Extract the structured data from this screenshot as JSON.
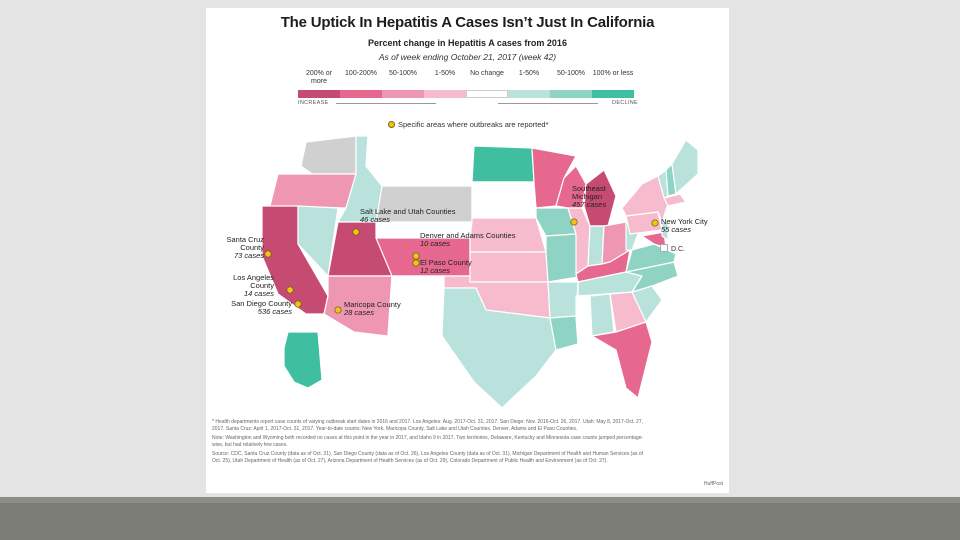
{
  "title": "The Uptick In Hepatitis A Cases Isn’t Just In California",
  "subtitle": "Percent change in Hepatitis A cases from 2016",
  "as_of": "As of week ending October 21, 2017 (week 42)",
  "legend": {
    "items": [
      {
        "label": "200% or more",
        "color": "#c64b72"
      },
      {
        "label": "100-200%",
        "color": "#e6688e"
      },
      {
        "label": "50-100%",
        "color": "#ef97b2"
      },
      {
        "label": "1-50%",
        "color": "#f6bccd"
      },
      {
        "label": "No change",
        "color": "#ffffff"
      },
      {
        "label": "1-50%",
        "color": "#b8e2db"
      },
      {
        "label": "50-100%",
        "color": "#8fd3c4"
      },
      {
        "label": "100% or less",
        "color": "#3fbf9f"
      }
    ],
    "increase_label": "INCREASE",
    "decline_label": "DECLINE"
  },
  "outbreak_key": "Specific areas where outbreaks are reported*",
  "annotations": {
    "santa_cruz": {
      "name": "Santa Cruz County",
      "cases": "73 cases"
    },
    "los_angeles": {
      "name": "Los Angeles County",
      "cases": "14 cases"
    },
    "san_diego": {
      "name": "San Diego County",
      "cases": "536 cases"
    },
    "salt_lake": {
      "name": "Salt Lake and Utah Counties",
      "cases": "46 cases"
    },
    "denver": {
      "name": "Denver and Adams Counties",
      "cases": "10 cases"
    },
    "el_paso": {
      "name": "El Paso County",
      "cases": "12 cases"
    },
    "maricopa": {
      "name": "Maricopa County",
      "cases": "28 cases"
    },
    "michigan": {
      "name": "Southeast Michigan",
      "cases": "457 cases"
    },
    "new_york": {
      "name": "New York City",
      "cases": "55 cases"
    }
  },
  "dc_label": "D.C.",
  "footnotes": [
    "* Health departments report case counts of varying outbreak start dates in 2016 and 2017. Los Angeles: Aug. 2017-Oct. 31, 2017. San Diego: Nov. 2016-Oct. 26, 2017. Utah: May 8, 2017-Oct. 27, 2017. Santa Cruz: April 1, 2017-Oct. 31, 2017. Year-to-date counts: New York, Maricopa County, Salt Lake and Utah Counties, Denver, Adams and El Paso Counties.",
    "Note: Washington and Wyoming both recorded no cases at this point in the year in 2017, and Idaho 9 in 2017. Two territories, Delaware, Kentucky and Minnesota case counts jumped percentage-wise, but had relatively few cases.",
    "Source: CDC, Santa Cruz County (data as of Oct. 31), San Diego County (data as of Oct. 26), Los Angeles County (data as of Oct. 31), Michigan Department of Health and Human Services (as of Oct. 25), Utah Department of Health (as of Oct. 27), Arizona Department of Health Services (as of Oct. 29), Colorado Department of Public Health and Environment (as of Oct. 27)."
  ],
  "credit": "HuffPost",
  "state_colors": {
    "WA": "#d0d0d0",
    "OR": "#ef97b2",
    "CA": "#c64b72",
    "NV": "#b8e2db",
    "ID": "#b8e2db",
    "MT": "#ffffff",
    "WY": "#d0d0d0",
    "UT": "#c64b72",
    "AZ": "#ef97b2",
    "NM": "#ffffff",
    "CO": "#e6688e",
    "ND": "#3fbf9f",
    "SD": "#ffffff",
    "NE": "#f6bccd",
    "KS": "#f6bccd",
    "OK": "#f6bccd",
    "TX": "#b8e2db",
    "MN": "#e6688e",
    "IA": "#8fd3c4",
    "MO": "#8fd3c4",
    "AR": "#b8e2db",
    "LA": "#8fd3c4",
    "WI": "#e6688e",
    "IL": "#f6bccd",
    "MI": "#c64b72",
    "IN": "#b8e2db",
    "OH": "#ef97b2",
    "KY": "#e6688e",
    "TN": "#b8e2db",
    "MS": "#ffffff",
    "AL": "#b8e2db",
    "GA": "#f6bccd",
    "FL": "#e6688e",
    "SC": "#b8e2db",
    "NC": "#8fd3c4",
    "VA": "#8fd3c4",
    "WV": "#b8e2db",
    "PA": "#f6bccd",
    "NY": "#f6bccd",
    "VT": "#b8e2db",
    "NH": "#8fd3c4",
    "ME": "#b8e2db",
    "MA": "#f6bccd",
    "NJ": "#b8e2db",
    "MD": "#e6688e",
    "AK": "#3fbf9f",
    "HI": "#ffffff"
  },
  "outbreak_dot_color": "#f2c21b"
}
